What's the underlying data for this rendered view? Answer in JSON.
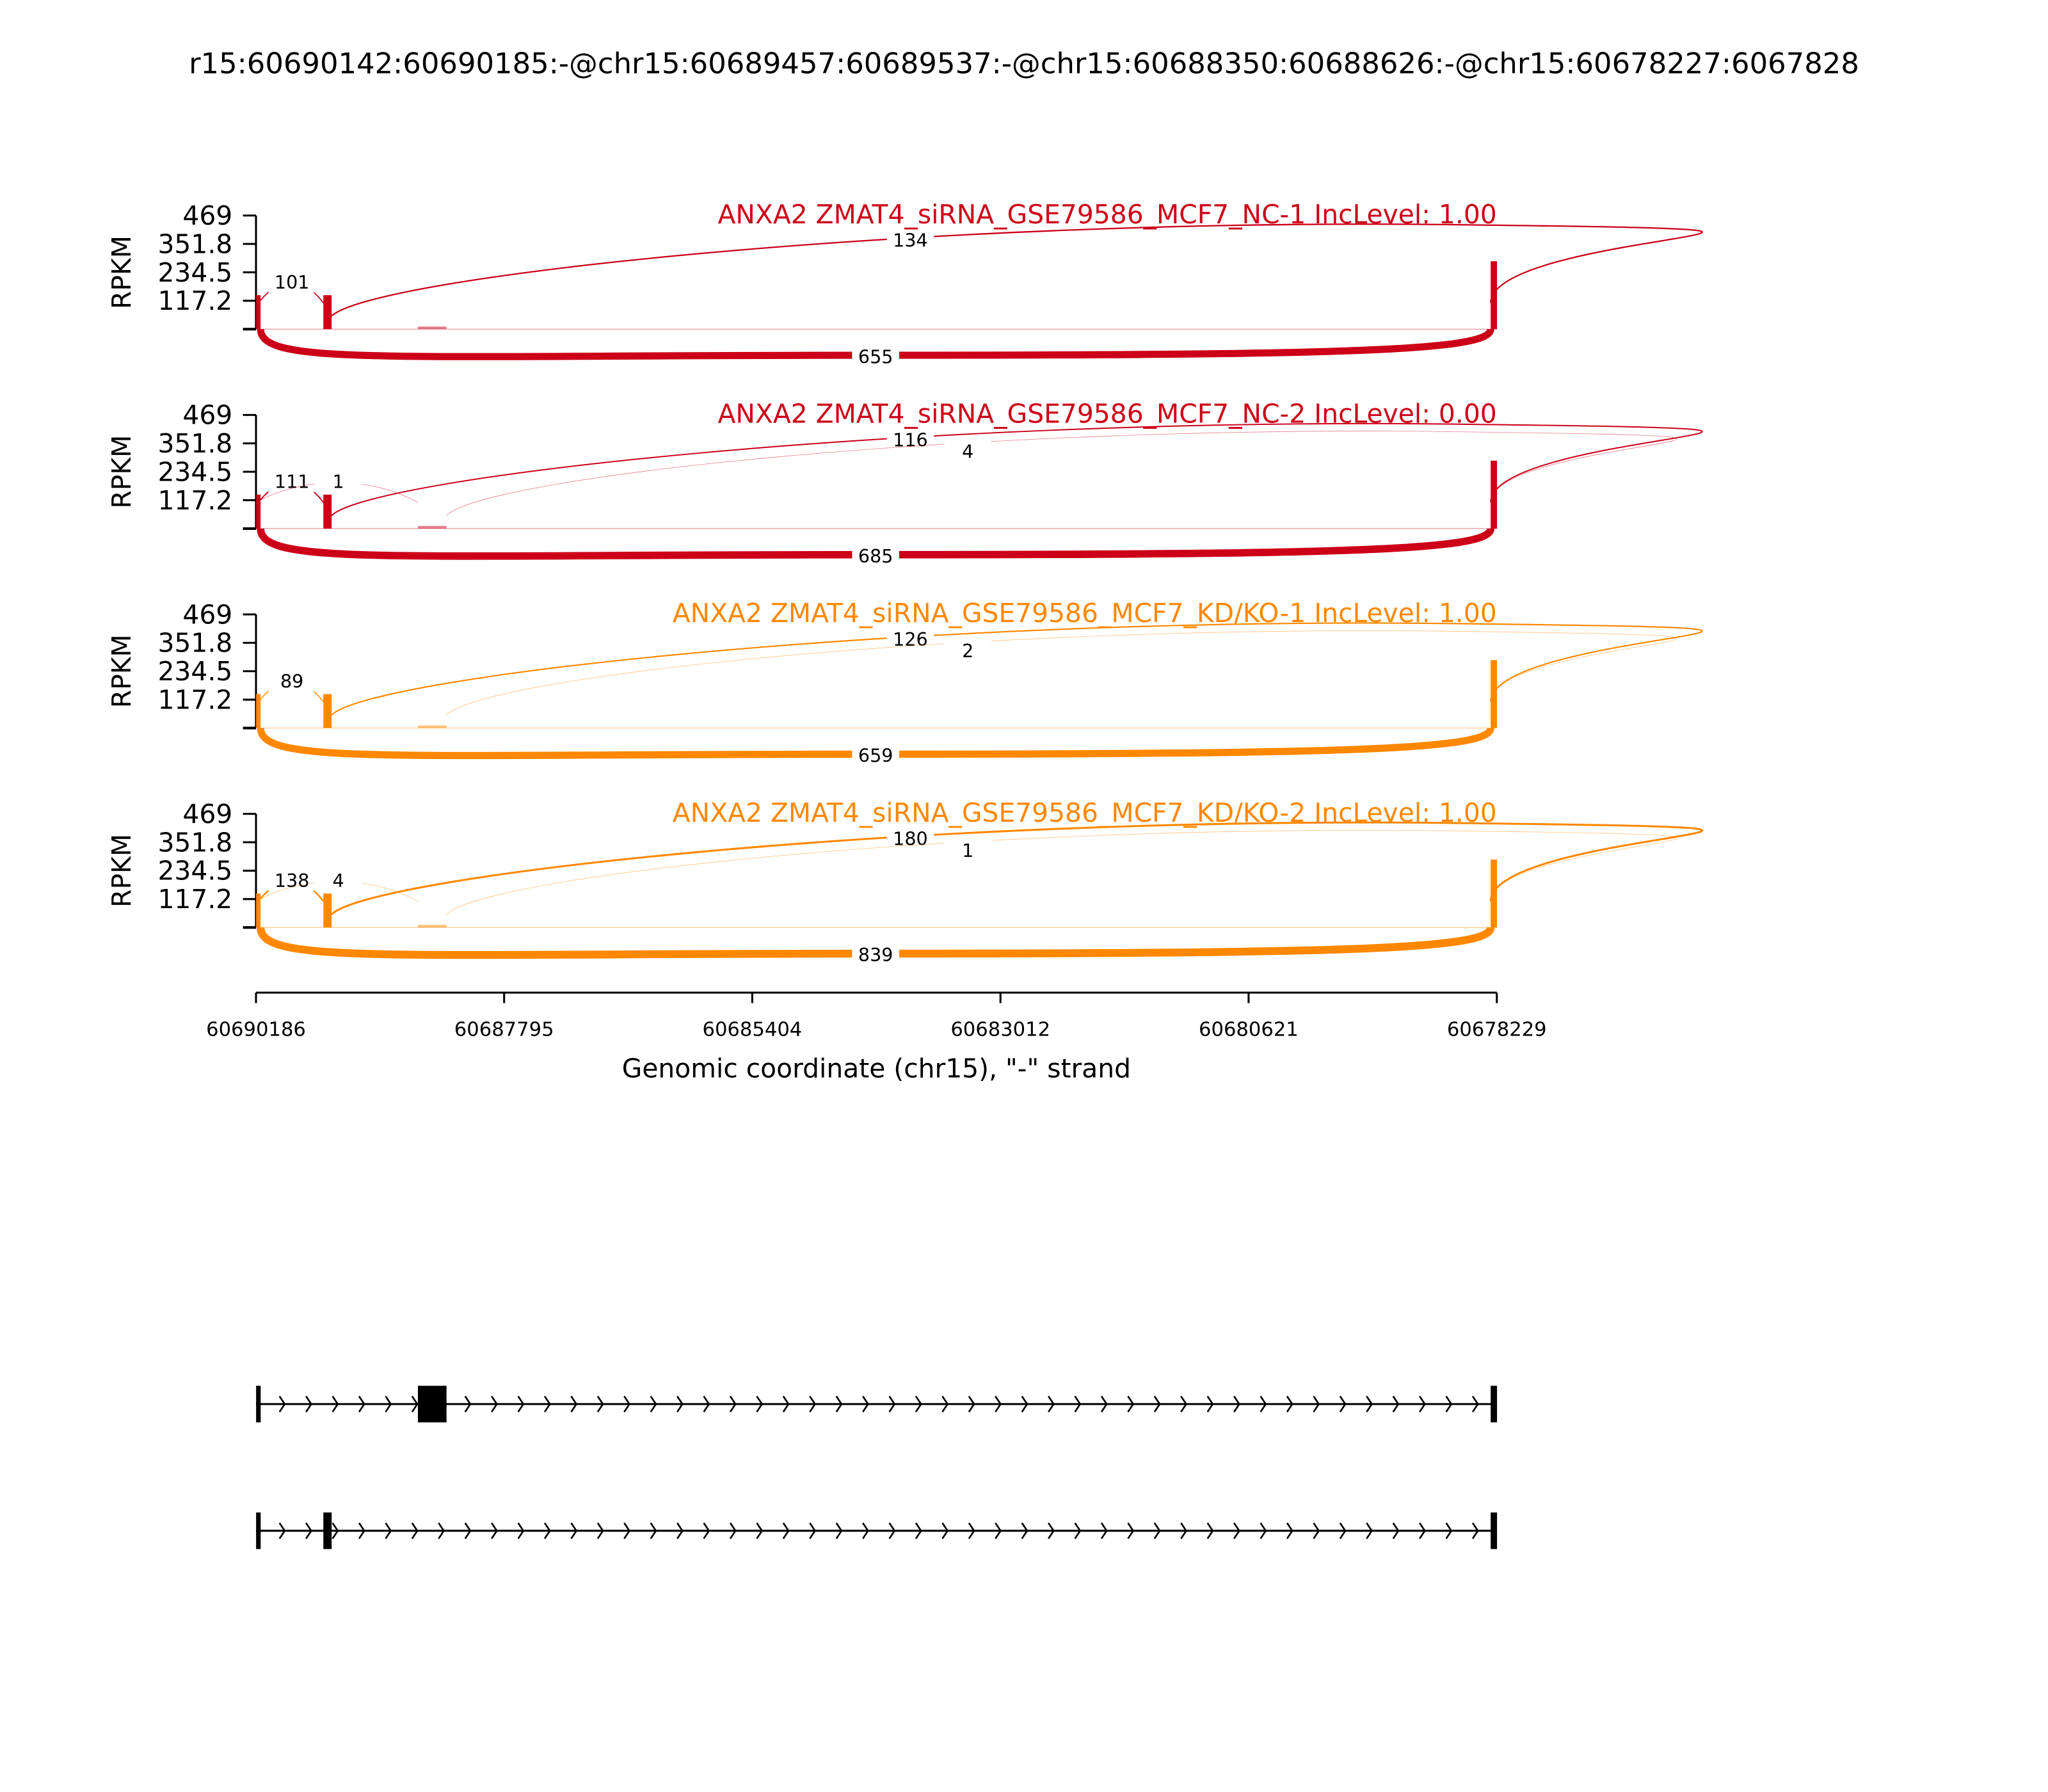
{
  "title": "r15:60690142:60690185:-@chr15:60689457:60689537:-@chr15:60688350:60688626:-@chr15:60678227:6067828",
  "chart_data": {
    "type": "sashimi",
    "ylabel": "RPKM",
    "ylim": [
      0,
      469
    ],
    "yticks": [
      "117.2",
      "234.5",
      "351.8",
      "469"
    ],
    "xlabel": "Genomic coordinate (chr15), \"-\" strand",
    "xlim": [
      60690186,
      60678229
    ],
    "xticks": [
      "60690186",
      "60687795",
      "60685404",
      "60683012",
      "60680621",
      "60678229"
    ],
    "exons": [
      {
        "start": 60690142,
        "end": 60690185
      },
      {
        "start": 60689457,
        "end": 60689537
      },
      {
        "start": 60688350,
        "end": 60688626
      },
      {
        "start": 60678227,
        "end": 60678288
      }
    ],
    "panels": [
      {
        "label": "ANXA2 ZMAT4_siRNA_GSE79586_MCF7_NC-1 IncLevel: 1.00",
        "color": "#cc0018",
        "junctions": [
          {
            "from": 60690142,
            "to": 60689537,
            "count": "101",
            "side": "above"
          },
          {
            "from": 60689457,
            "to": 60678288,
            "count": "134",
            "side": "above"
          },
          {
            "from": 60690142,
            "to": 60678288,
            "count": "655",
            "side": "below"
          }
        ]
      },
      {
        "label": "ANXA2 ZMAT4_siRNA_GSE79586_MCF7_NC-2 IncLevel: 0.00",
        "color": "#cc0018",
        "junctions": [
          {
            "from": 60690142,
            "to": 60689537,
            "count": "111",
            "side": "above"
          },
          {
            "from": 60690142,
            "to": 60688626,
            "count": "1",
            "side": "above"
          },
          {
            "from": 60689457,
            "to": 60678288,
            "count": "116",
            "side": "above"
          },
          {
            "from": 60688350,
            "to": 60678288,
            "count": "4",
            "side": "above"
          },
          {
            "from": 60690142,
            "to": 60678288,
            "count": "685",
            "side": "below"
          }
        ]
      },
      {
        "label": "ANXA2 ZMAT4_siRNA_GSE79586_MCF7_KD/KO-1 IncLevel: 1.00",
        "color": "#ff8800",
        "junctions": [
          {
            "from": 60690142,
            "to": 60689537,
            "count": "89",
            "side": "above"
          },
          {
            "from": 60689457,
            "to": 60678288,
            "count": "126",
            "side": "above"
          },
          {
            "from": 60688350,
            "to": 60678288,
            "count": "2",
            "side": "above"
          },
          {
            "from": 60690142,
            "to": 60678288,
            "count": "659",
            "side": "below"
          }
        ]
      },
      {
        "label": "ANXA2 ZMAT4_siRNA_GSE79586_MCF7_KD/KO-2 IncLevel: 1.00",
        "color": "#ff8800",
        "junctions": [
          {
            "from": 60690142,
            "to": 60689537,
            "count": "138",
            "side": "above"
          },
          {
            "from": 60690142,
            "to": 60688626,
            "count": "4",
            "side": "above"
          },
          {
            "from": 60689457,
            "to": 60678288,
            "count": "180",
            "side": "above"
          },
          {
            "from": 60688350,
            "to": 60678288,
            "count": "1",
            "side": "above"
          },
          {
            "from": 60690142,
            "to": 60678288,
            "count": "839",
            "side": "below"
          }
        ]
      }
    ],
    "transcripts": [
      {
        "exons": [
          [
            60690142,
            60690185
          ],
          [
            60688350,
            60688626
          ],
          [
            60678227,
            60678288
          ]
        ]
      },
      {
        "exons": [
          [
            60690142,
            60690185
          ],
          [
            60689457,
            60689537
          ],
          [
            60678227,
            60678288
          ]
        ]
      }
    ]
  }
}
